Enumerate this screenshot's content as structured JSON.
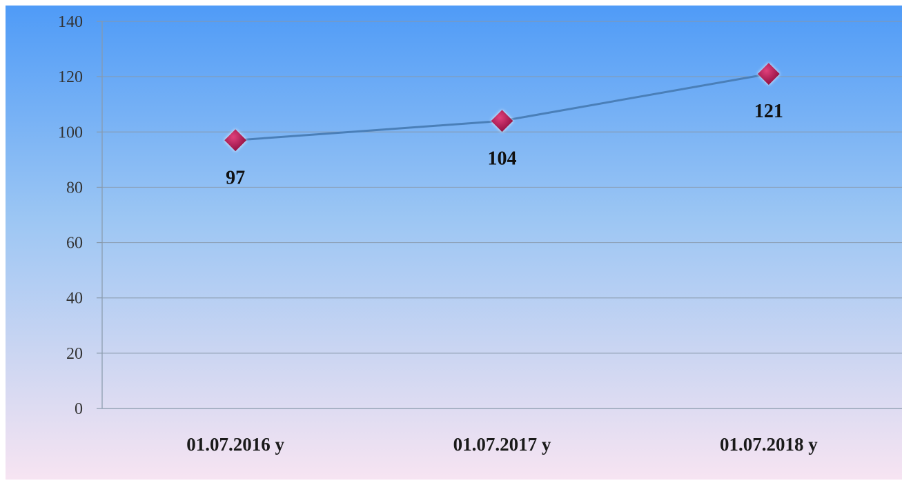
{
  "chart_data": {
    "type": "line",
    "categories": [
      "01.07.2016 y",
      "01.07.2017 y",
      "01.07.2018 y"
    ],
    "series": [
      {
        "values": [
          97,
          104,
          121
        ]
      }
    ],
    "data_labels": [
      "97",
      "104",
      "121"
    ],
    "y_ticks": [
      "0",
      "20",
      "40",
      "60",
      "80",
      "100",
      "120",
      "140"
    ],
    "ylim": [
      0,
      140
    ],
    "grid": true,
    "legend": "none",
    "marker": "diamond",
    "colors": {
      "background_top": "#4f9bf7",
      "background_bottom": "#f7e4f2",
      "line": "#4a7fb8",
      "marker_fill": "#b0124f",
      "marker_highlight": "#e0407a",
      "gridline": "#8899aa"
    }
  }
}
